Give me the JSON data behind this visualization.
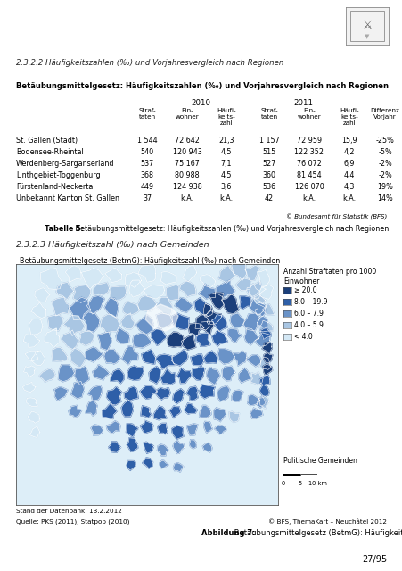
{
  "page_title": "2.3.2.2 Häufigkeitszahlen (‰) und Vorjahresvergleich nach Regionen",
  "table_title": "Betäubungsmittelgesetz: Häufigkeitszahlen (‰) und Vorjahresvergleich nach Regionen",
  "rows": [
    [
      "St. Gallen (Stadt)",
      "1 544",
      "72 642",
      "21,3",
      "1 157",
      "72 959",
      "15,9",
      "-25%"
    ],
    [
      "Bodensee-Rheintal",
      "540",
      "120 943",
      "4,5",
      "515",
      "122 352",
      "4,2",
      "-5%"
    ],
    [
      "Werdenberg-Sarganserland",
      "537",
      "75 167",
      "7,1",
      "527",
      "76 072",
      "6,9",
      "-2%"
    ],
    [
      "Linthgebiet-Toggenburg",
      "368",
      "80 988",
      "4,5",
      "360",
      "81 454",
      "4,4",
      "-2%"
    ],
    [
      "Fürstenland-Neckertal",
      "449",
      "124 938",
      "3,6",
      "536",
      "126 070",
      "4,3",
      "19%"
    ],
    [
      "Unbekannt Kanton St. Gallen",
      "37",
      "k.A.",
      "k.A.",
      "42",
      "k.A.",
      "k.A.",
      "14%"
    ]
  ],
  "bfs_credit": "© Bundesamt für Statistik (BFS)",
  "table_caption_bold": "Tabelle 5:",
  "table_caption_rest": " Betäubungsmittelgesetz: Häufigkeitszahlen (‰) und Vorjahresvergleich nach Regionen",
  "section_title2": "2.3.2.3 Häufigkeitszahl (‰) nach Gemeinden",
  "map_label": "Betäubungsmittelgesetz (BetmG): Häufigkeitszahl (‰) nach Gemeinden",
  "legend_title": "Anzahl Straftaten pro 1000\nEinwohner",
  "legend_items": [
    [
      "≥ 20.0",
      "#1b3f7a"
    ],
    [
      "8.0 – 19.9",
      "#2e5fa8"
    ],
    [
      "6.0 – 7.9",
      "#6a93c8"
    ],
    [
      "4.0 – 5.9",
      "#a9c6e3"
    ],
    [
      "< 4.0",
      "#d4e8f5"
    ]
  ],
  "pol_gemeinden": "Politische Gemeinden",
  "date_label": "Stand der Datenbank: 13.2.2012",
  "source_left": "Quelle: PKS (2011), Statpop (2010)",
  "source_right": "© BFS, ThemaKart – Neuchâtel 2012",
  "fig_caption_bold": "Abbildung 7:",
  "fig_caption_rest": " Betäubungsmittelgesetz (BetmG): Häufigkeitszahl (‰) nach Gemeinden",
  "page_number": "27/95",
  "bg_color": "#ffffff"
}
